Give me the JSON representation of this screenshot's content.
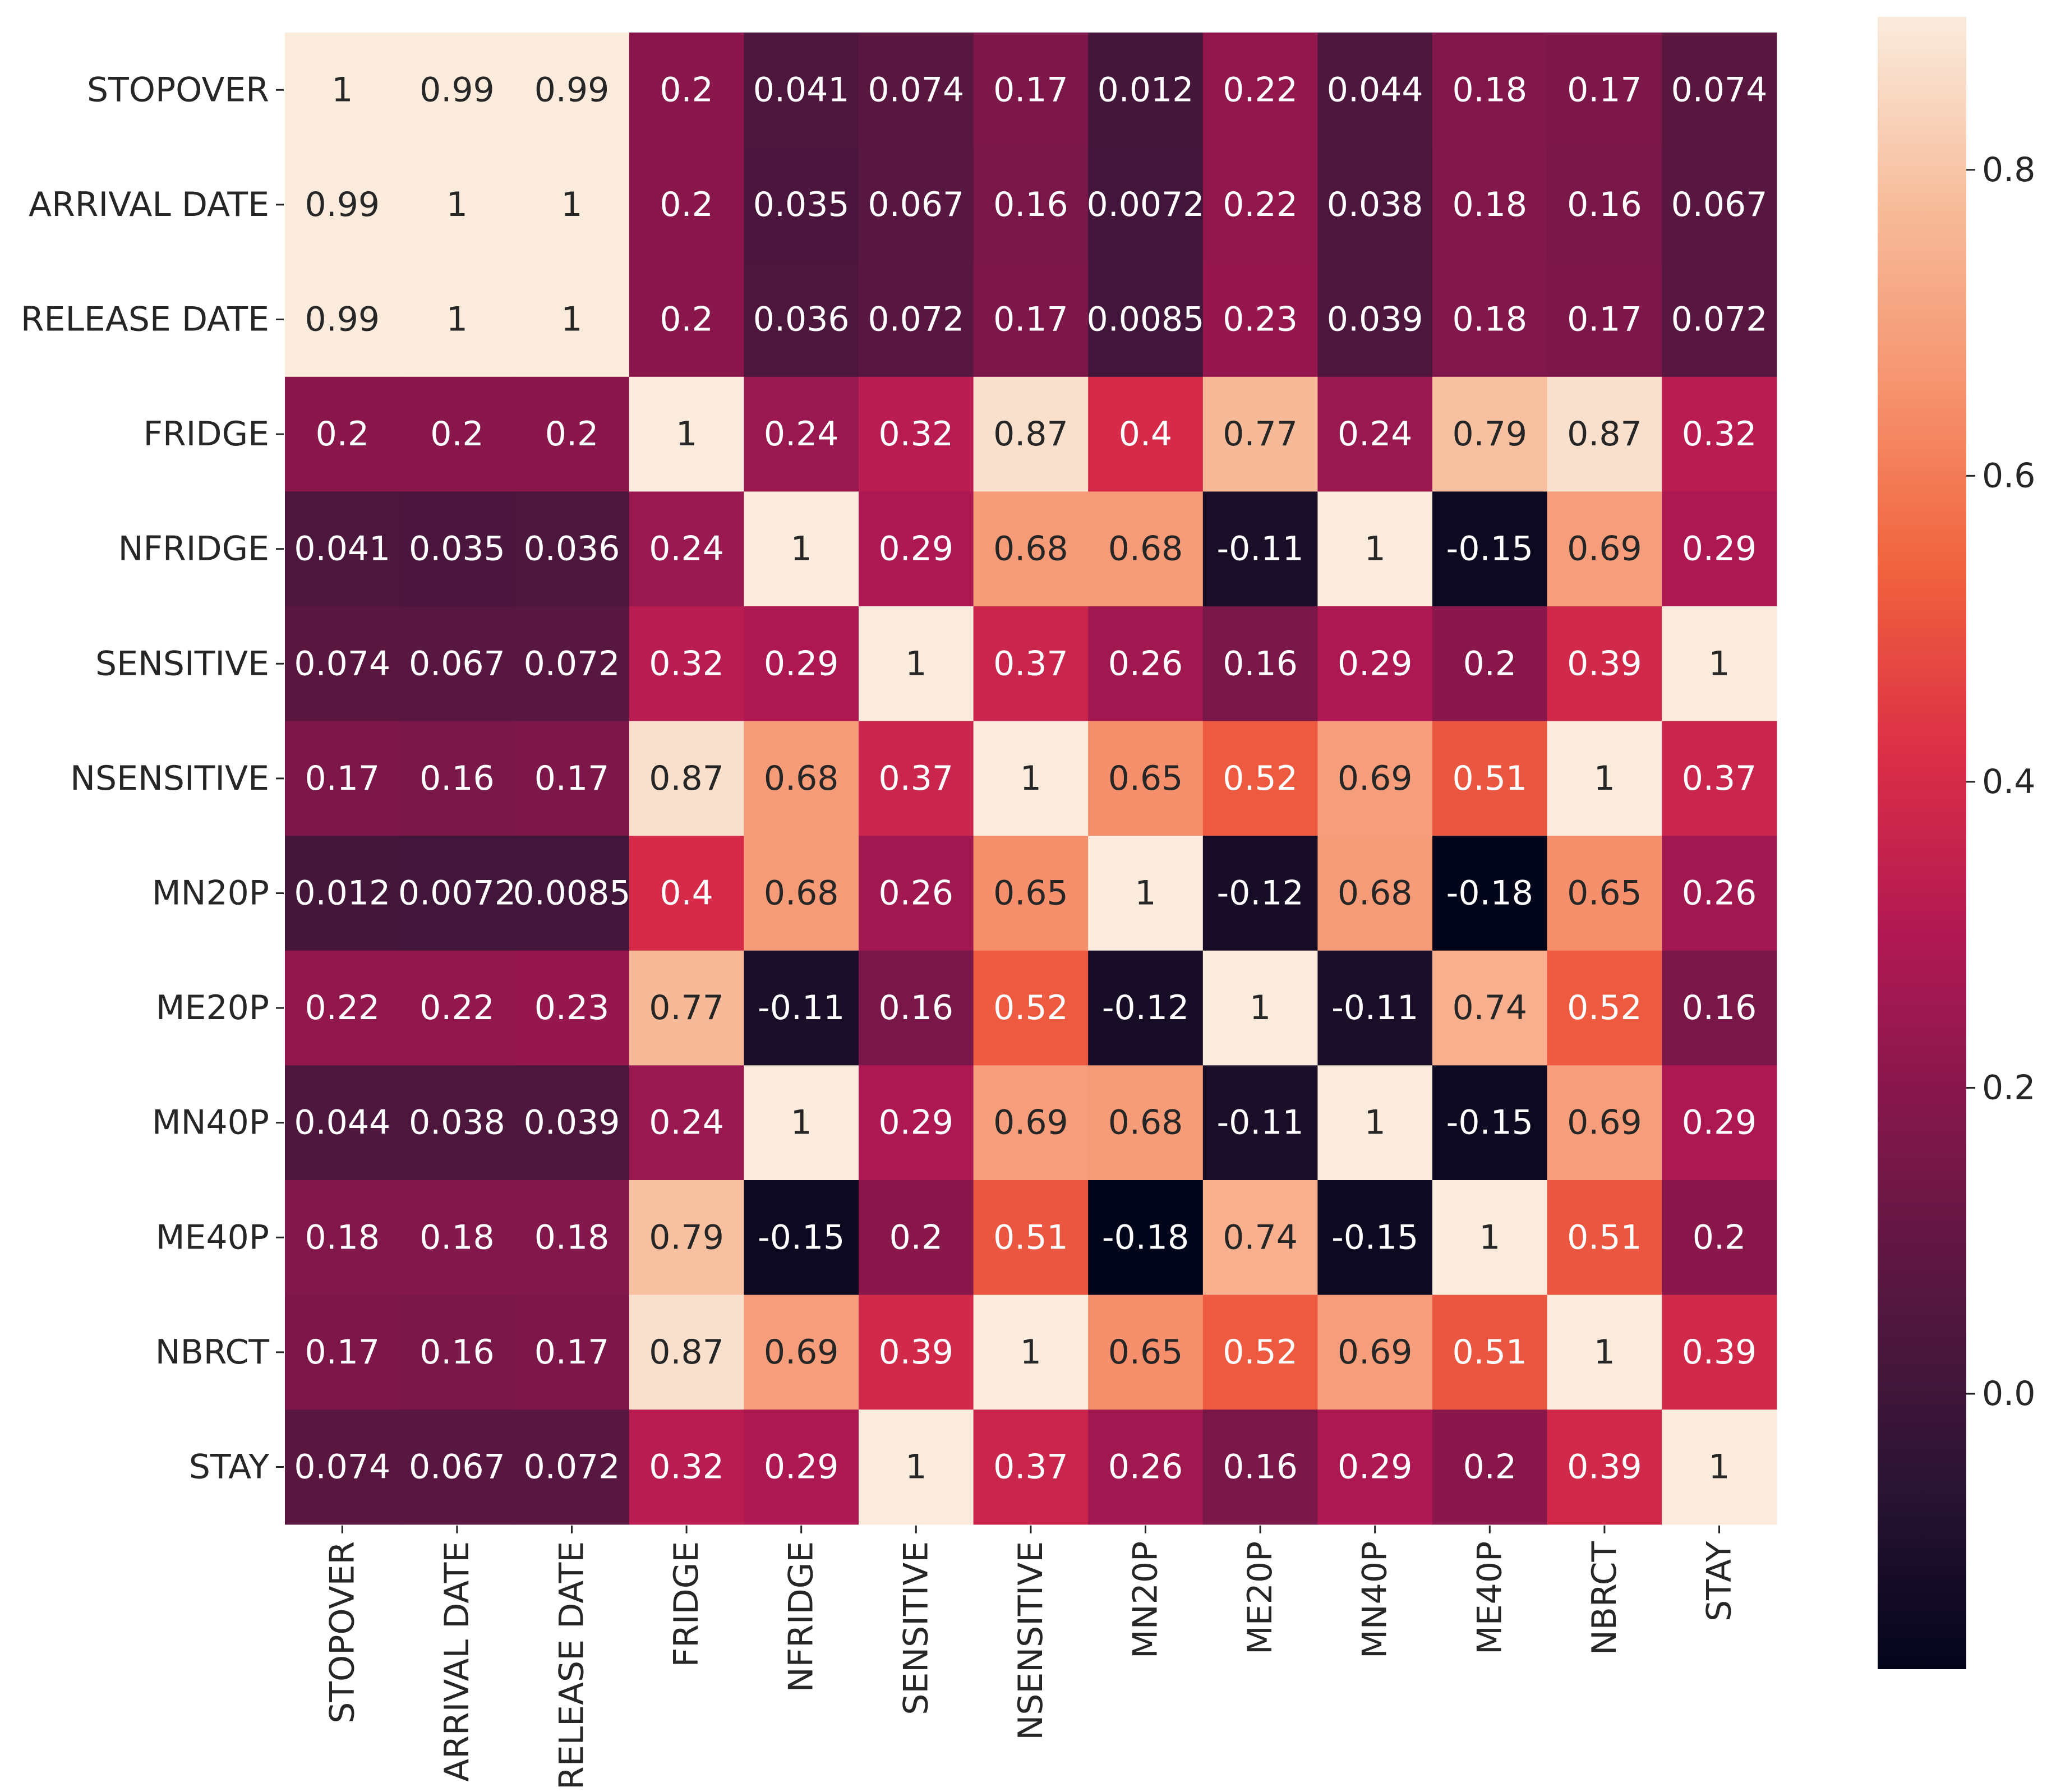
{
  "chart_data": {
    "type": "heatmap",
    "title": "",
    "xlabel": "",
    "ylabel": "",
    "row_labels": [
      "STOPOVER",
      "ARRIVAL DATE",
      "RELEASE DATE",
      "FRIDGE",
      "NFRIDGE",
      "SENSITIVE",
      "NSENSITIVE",
      "MN20P",
      "ME20P",
      "MN40P",
      "ME40P",
      "NBRCT",
      "STAY"
    ],
    "column_labels": [
      "STOPOVER",
      "ARRIVAL DATE",
      "RELEASE DATE",
      "FRIDGE",
      "NFRIDGE",
      "SENSITIVE",
      "NSENSITIVE",
      "MN20P",
      "ME20P",
      "MN40P",
      "ME40P",
      "NBRCT",
      "STAY"
    ],
    "values": [
      [
        1,
        0.99,
        0.99,
        0.2,
        0.041,
        0.074,
        0.17,
        0.012,
        0.22,
        0.044,
        0.18,
        0.17,
        0.074
      ],
      [
        0.99,
        1,
        1,
        0.2,
        0.035,
        0.067,
        0.16,
        0.0072,
        0.22,
        0.038,
        0.18,
        0.16,
        0.067
      ],
      [
        0.99,
        1,
        1,
        0.2,
        0.036,
        0.072,
        0.17,
        0.0085,
        0.23,
        0.039,
        0.18,
        0.17,
        0.072
      ],
      [
        0.2,
        0.2,
        0.2,
        1,
        0.24,
        0.32,
        0.87,
        0.4,
        0.77,
        0.24,
        0.79,
        0.87,
        0.32
      ],
      [
        0.041,
        0.035,
        0.036,
        0.24,
        1,
        0.29,
        0.68,
        0.68,
        -0.11,
        1,
        -0.15,
        0.69,
        0.29
      ],
      [
        0.074,
        0.067,
        0.072,
        0.32,
        0.29,
        1,
        0.37,
        0.26,
        0.16,
        0.29,
        0.2,
        0.39,
        1
      ],
      [
        0.17,
        0.16,
        0.17,
        0.87,
        0.68,
        0.37,
        1,
        0.65,
        0.52,
        0.69,
        0.51,
        1,
        0.37
      ],
      [
        0.012,
        0.0072,
        0.0085,
        0.4,
        0.68,
        0.26,
        0.65,
        1,
        -0.12,
        0.68,
        -0.18,
        0.65,
        0.26
      ],
      [
        0.22,
        0.22,
        0.23,
        0.77,
        -0.11,
        0.16,
        0.52,
        -0.12,
        1,
        -0.11,
        0.74,
        0.52,
        0.16
      ],
      [
        0.044,
        0.038,
        0.039,
        0.24,
        1,
        0.29,
        0.69,
        0.68,
        -0.11,
        1,
        -0.15,
        0.69,
        0.29
      ],
      [
        0.18,
        0.18,
        0.18,
        0.79,
        -0.15,
        0.2,
        0.51,
        -0.18,
        0.74,
        -0.15,
        1,
        0.51,
        0.2
      ],
      [
        0.17,
        0.16,
        0.17,
        0.87,
        0.69,
        0.39,
        1,
        0.65,
        0.52,
        0.69,
        0.51,
        1,
        0.39
      ],
      [
        0.074,
        0.067,
        0.072,
        0.32,
        0.29,
        1,
        0.37,
        0.26,
        0.16,
        0.29,
        0.2,
        0.39,
        1
      ]
    ],
    "annotations": [
      [
        "1",
        "0.99",
        "0.99",
        "0.2",
        "0.041",
        "0.074",
        "0.17",
        "0.012",
        "0.22",
        "0.044",
        "0.18",
        "0.17",
        "0.074"
      ],
      [
        "0.99",
        "1",
        "1",
        "0.2",
        "0.035",
        "0.067",
        "0.16",
        "0.0072",
        "0.22",
        "0.038",
        "0.18",
        "0.16",
        "0.067"
      ],
      [
        "0.99",
        "1",
        "1",
        "0.2",
        "0.036",
        "0.072",
        "0.17",
        "0.0085",
        "0.23",
        "0.039",
        "0.18",
        "0.17",
        "0.072"
      ],
      [
        "0.2",
        "0.2",
        "0.2",
        "1",
        "0.24",
        "0.32",
        "0.87",
        "0.4",
        "0.77",
        "0.24",
        "0.79",
        "0.87",
        "0.32"
      ],
      [
        "0.041",
        "0.035",
        "0.036",
        "0.24",
        "1",
        "0.29",
        "0.68",
        "0.68",
        "-0.11",
        "1",
        "-0.15",
        "0.69",
        "0.29"
      ],
      [
        "0.074",
        "0.067",
        "0.072",
        "0.32",
        "0.29",
        "1",
        "0.37",
        "0.26",
        "0.16",
        "0.29",
        "0.2",
        "0.39",
        "1"
      ],
      [
        "0.17",
        "0.16",
        "0.17",
        "0.87",
        "0.68",
        "0.37",
        "1",
        "0.65",
        "0.52",
        "0.69",
        "0.51",
        "1",
        "0.37"
      ],
      [
        "0.012",
        "0.0072",
        "0.0085",
        "0.4",
        "0.68",
        "0.26",
        "0.65",
        "1",
        "-0.12",
        "0.68",
        "-0.18",
        "0.65",
        "0.26"
      ],
      [
        "0.22",
        "0.22",
        "0.23",
        "0.77",
        "-0.11",
        "0.16",
        "0.52",
        "-0.12",
        "1",
        "-0.11",
        "0.74",
        "0.52",
        "0.16"
      ],
      [
        "0.044",
        "0.038",
        "0.039",
        "0.24",
        "1",
        "0.29",
        "0.69",
        "0.68",
        "-0.11",
        "1",
        "-0.15",
        "0.69",
        "0.29"
      ],
      [
        "0.18",
        "0.18",
        "0.18",
        "0.79",
        "-0.15",
        "0.2",
        "0.51",
        "-0.18",
        "0.74",
        "-0.15",
        "1",
        "0.51",
        "0.2"
      ],
      [
        "0.17",
        "0.16",
        "0.17",
        "0.87",
        "0.69",
        "0.39",
        "1",
        "0.65",
        "0.52",
        "0.69",
        "0.51",
        "1",
        "0.39"
      ],
      [
        "0.074",
        "0.067",
        "0.072",
        "0.32",
        "0.29",
        "1",
        "0.37",
        "0.26",
        "0.16",
        "0.29",
        "0.2",
        "0.39",
        "1"
      ]
    ],
    "colormap": "rocket",
    "vmin": -0.18,
    "vmax": 0.9,
    "colorbar": {
      "ticks": [
        0.0,
        0.2,
        0.4,
        0.6,
        0.8
      ],
      "tick_labels": [
        "0.0",
        "0.2",
        "0.4",
        "0.6",
        "0.8"
      ]
    },
    "colormap_stops": [
      "#03051a",
      "#2a1433",
      "#54173f",
      "#81174a",
      "#b11853",
      "#dc2f47",
      "#f0633d",
      "#f69470",
      "#f7bd9c",
      "#faebdd"
    ],
    "dark_text_color": "#262626",
    "light_text_color": "#ffffff",
    "grid": false
  }
}
